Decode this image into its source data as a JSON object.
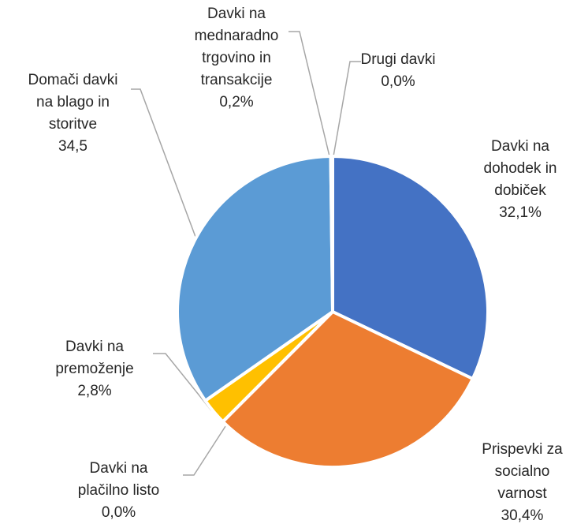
{
  "chart_data": {
    "type": "pie",
    "categories": [
      "Davki na dohodek in dobiček",
      "Prispevki za socialno varnost",
      "Davki na plačilno listo",
      "Davki na premoženje",
      "Domači davki na blago in storitve",
      "Davki na mednaradno trgovino in transakcije",
      "Drugi davki"
    ],
    "values": [
      32.1,
      30.4,
      0.0,
      2.8,
      34.5,
      0.2,
      0.0
    ],
    "value_labels": [
      "32,1%",
      "30,4%",
      "0,0%",
      "2,8%",
      "34,5",
      "0,2%",
      "0,0%"
    ],
    "colors": [
      "#4472c4",
      "#ed7d31",
      "#a5a5a5",
      "#ffc000",
      "#5b9bd5",
      "#70ad47",
      "#264478"
    ]
  }
}
